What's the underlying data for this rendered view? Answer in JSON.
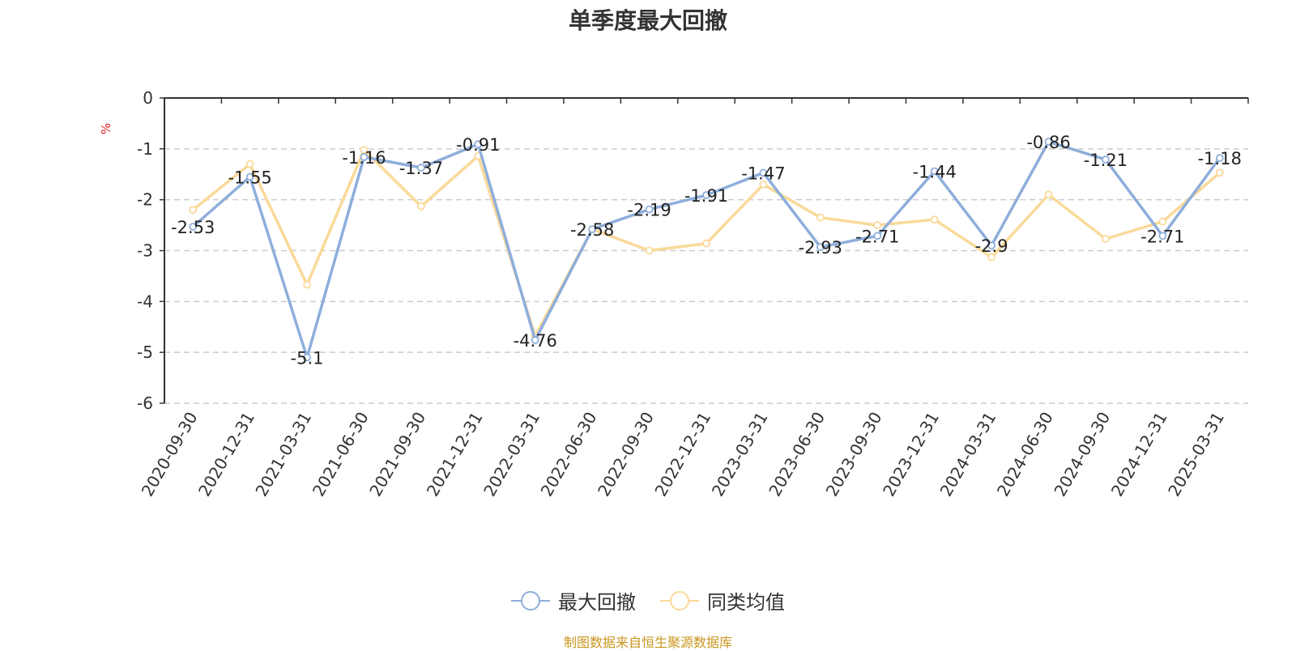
{
  "title": "单季度最大回撤",
  "unit": "%",
  "source": "制图数据来自恒生聚源数据库",
  "chart_data": {
    "type": "line",
    "title": "单季度最大回撤",
    "ylabel": "%",
    "ylim": [
      -6,
      0
    ],
    "yticks": [
      0,
      -1,
      -2,
      -3,
      -4,
      -5,
      -6
    ],
    "grid": true,
    "legend_position": "bottom",
    "categories": [
      "2020-09-30",
      "2020-12-31",
      "2021-03-31",
      "2021-06-30",
      "2021-09-30",
      "2021-12-31",
      "2022-03-31",
      "2022-06-30",
      "2022-09-30",
      "2022-12-31",
      "2023-03-31",
      "2023-06-30",
      "2023-09-30",
      "2023-12-31",
      "2024-03-31",
      "2024-06-30",
      "2024-09-30",
      "2024-12-31",
      "2025-03-31"
    ],
    "series": [
      {
        "name": "最大回撤",
        "color": "#8eaedb",
        "values": [
          -2.53,
          -1.55,
          -5.1,
          -1.16,
          -1.37,
          -0.91,
          -4.76,
          -2.58,
          -2.19,
          -1.91,
          -1.47,
          -2.93,
          -2.71,
          -1.44,
          -2.9,
          -0.86,
          -1.21,
          -2.71,
          -1.18
        ],
        "labels": [
          "-2.53",
          "-1.55",
          "-5.1",
          "-1.16",
          "-1.37",
          "-0.91",
          "-4.76",
          "-2.58",
          "-2.19",
          "-1.91",
          "-1.47",
          "-2.93",
          "-2.71",
          "-1.44",
          "-2.9",
          "-0.86",
          "-1.21",
          "-2.71",
          "-1.18"
        ]
      },
      {
        "name": "同类均值",
        "color": "#fad999",
        "values": [
          -2.2,
          -1.3,
          -3.67,
          -1.02,
          -2.13,
          -1.14,
          -4.68,
          -2.58,
          -3.0,
          -2.86,
          -1.7,
          -2.35,
          -2.5,
          -2.39,
          -3.13,
          -1.9,
          -2.77,
          -2.43,
          -1.47
        ]
      }
    ]
  }
}
